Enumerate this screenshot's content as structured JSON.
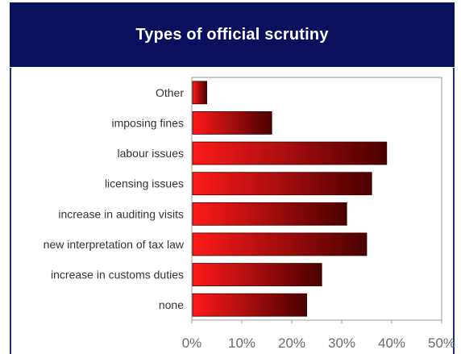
{
  "chart_data": {
    "type": "bar",
    "orientation": "horizontal",
    "title": "Types of official scrutiny",
    "categories": [
      "Other",
      "imposing fines",
      "labour issues",
      "licensing issues",
      "increase in auditing visits",
      "new interpretation of tax law",
      "increase in customs duties",
      "none"
    ],
    "values": [
      3,
      16,
      39,
      36,
      31,
      35,
      26,
      23
    ],
    "xlim": [
      0,
      50
    ],
    "xticks": [
      0,
      10,
      20,
      30,
      40,
      50
    ],
    "tick_labels": [
      "0%",
      "10%",
      "20%",
      "30%",
      "40%",
      "50%"
    ],
    "unit": "%",
    "grid": false,
    "legend": "none"
  },
  "colors": {
    "title_background": "#0b0f5e",
    "title_text": "#ffffff",
    "bar_light": "#ff1a1a",
    "bar_dark": "#4a0000"
  }
}
